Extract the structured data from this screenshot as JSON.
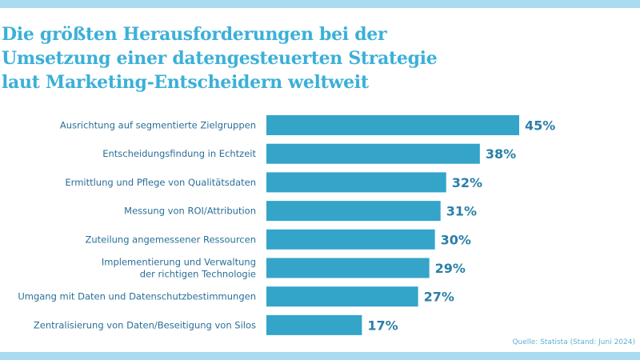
{
  "title_lines": [
    "Die größten Herausforderungen bei der",
    "Umsetzung einer datengesteuerten Strategie",
    "laut Marketing-Entscheidern weltweit"
  ],
  "source": "Quelle: Statista (Stand: Juni 2024)",
  "colors": {
    "bar": "#34a4c9",
    "title": "#3bb0d8",
    "accent_bars": "#a9dcf0"
  },
  "chart_data": {
    "type": "bar",
    "orientation": "horizontal",
    "categories": [
      [
        "Ausrichtung auf segmentierte Zielgruppen"
      ],
      [
        "Entscheidungsfindung in Echtzeit"
      ],
      [
        "Ermittlung und Pflege von Qualitätsdaten"
      ],
      [
        "Messung von ROI/Attribution"
      ],
      [
        "Zuteilung angemessener Ressourcen"
      ],
      [
        "Implementierung und Verwaltung",
        "der richtigen Technologie"
      ],
      [
        "Umgang mit Daten und Datenschutzbestimmungen"
      ],
      [
        "Zentralisierung von Daten/Beseitigung von Silos"
      ]
    ],
    "values": [
      45,
      38,
      32,
      31,
      30,
      29,
      27,
      17
    ],
    "value_labels": [
      "45%",
      "38%",
      "32%",
      "31%",
      "30%",
      "29%",
      "27%",
      "17%"
    ],
    "unit": "%",
    "xlim": [
      0,
      45
    ],
    "grid": false,
    "legend": "none"
  }
}
